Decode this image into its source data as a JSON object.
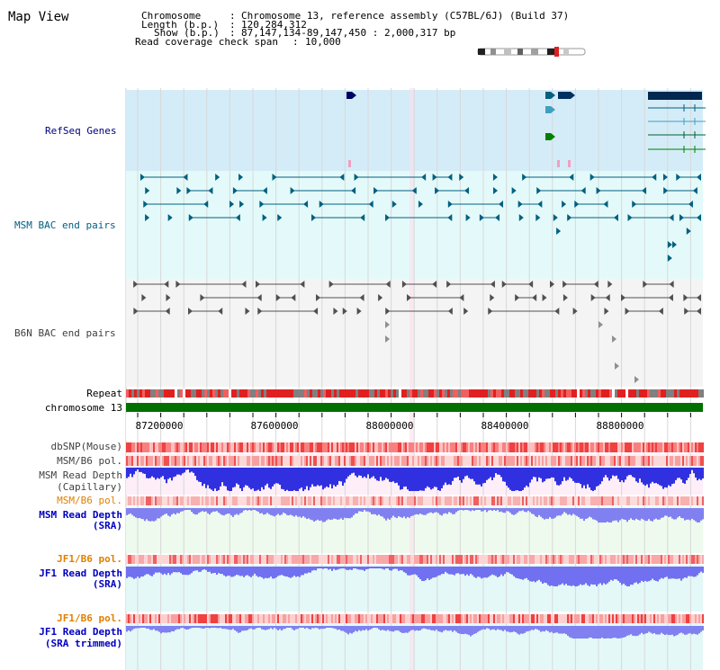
{
  "page": {
    "title": "Map View"
  },
  "header": {
    "chromosome_label": "Chromosome",
    "chromosome_value": "Chromosome 13, reference assembly (C57BL/6J) (Build 37)",
    "length_label": "Length (b.p.)",
    "length_value": "120,284,312",
    "show_label": "Show (b.p.)",
    "show_value": "87,147,134-89,147,450 : 2,000,317 bp",
    "span_label": "Read coverage check span",
    "span_value": "10,000"
  },
  "tracks": {
    "refseq": {
      "label": "RefSeq Genes",
      "color": "#000080"
    },
    "msm_bac": {
      "label": "MSM BAC end pairs",
      "color": "#006080"
    },
    "b6n_bac": {
      "label": "B6N BAC end pairs",
      "color": "#404040"
    },
    "repeat": {
      "label": "Repeat"
    },
    "chromosome": {
      "label": "chromosome 13"
    },
    "dbsnp": {
      "label": "dbSNP(Mouse)"
    },
    "msm_b6_pol_1": {
      "label": "MSM/B6 pol."
    },
    "msm_read_depth_cap": {
      "line1": "MSM Read Depth",
      "line2": "(Capillary)"
    },
    "msm_b6_pol_2": {
      "label": "MSM/B6 pol."
    },
    "msm_read_depth_sra": {
      "line1": "MSM Read Depth",
      "line2": "(SRA)"
    },
    "jf1_b6_pol_1": {
      "label": "JF1/B6 pol."
    },
    "jf1_read_depth_sra": {
      "line1": "JF1 Read Depth",
      "line2": "(SRA)"
    },
    "jf1_b6_pol_2": {
      "label": "JF1/B6 pol."
    },
    "jf1_read_depth_trim": {
      "line1": "JF1 Read Depth",
      "line2": "(SRA trimmed)"
    }
  },
  "axis": {
    "ticks": [
      "87200000",
      "87600000",
      "88000000",
      "88400000",
      "88800000"
    ]
  },
  "colors": {
    "refseq_bg": "#d4ecf8",
    "msm_bg": "#e4fafa",
    "b6n_bg": "#f4f4f4",
    "pink_bg": "#fdeef8",
    "green_bg": "#eefaee",
    "cyan_bg": "#e4f8f8",
    "chrom_bar": "#007000",
    "orange_label": "#e08000",
    "blue_label": "#0000c0"
  }
}
